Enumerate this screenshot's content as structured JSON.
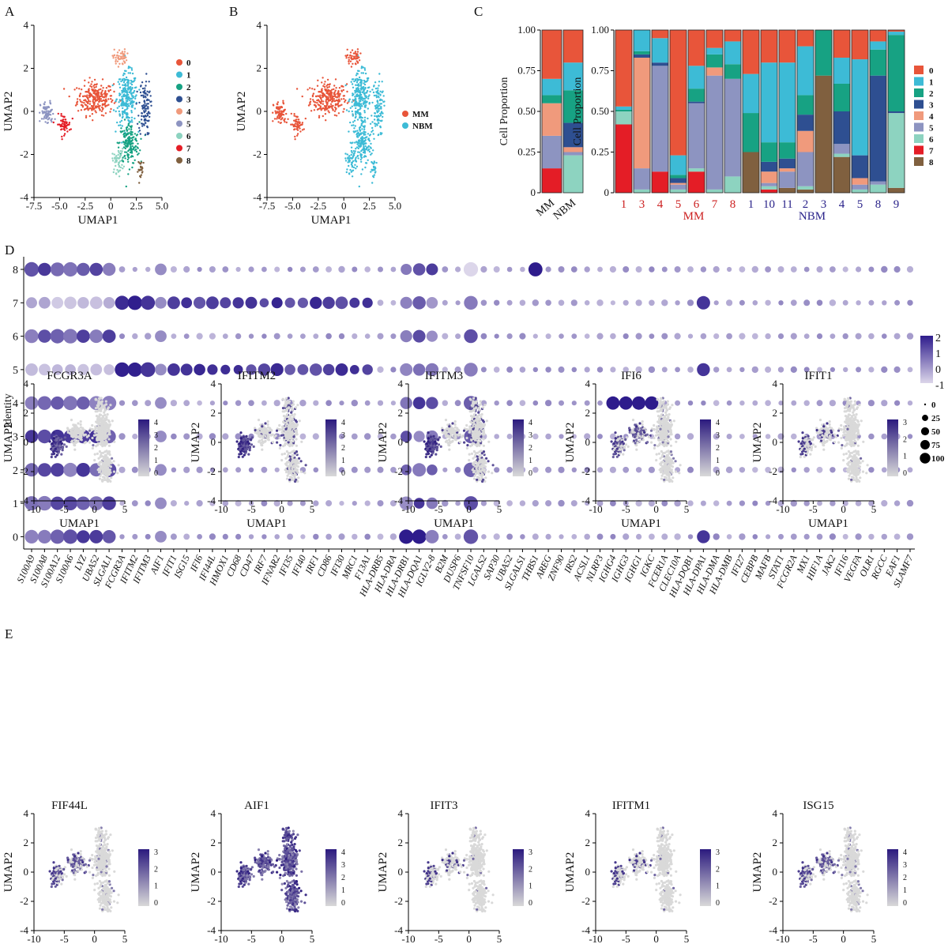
{
  "colors": {
    "clusters": [
      "#e8553a",
      "#3dbbd6",
      "#17a283",
      "#2e4f91",
      "#f09a7c",
      "#8d94c1",
      "#8dd3c0",
      "#e41d26",
      "#80603f"
    ],
    "mm": "#e8553a",
    "nbm": "#3dbbd6",
    "expr_low": "#d9d9d9",
    "expr_high": "#2b1a7e",
    "dot_low": "#dcd6ea",
    "dot_high": "#2e1c8c",
    "label_mm": "#cc1f1f",
    "label_nbm": "#2a238a"
  },
  "panel_labels": [
    "A",
    "B",
    "C",
    "D",
    "E"
  ],
  "chart_data": [
    {
      "type": "scatter",
      "panel": "A",
      "xlabel": "UMAP1",
      "ylabel": "UMAP2",
      "xlim": [
        -7.5,
        5.0
      ],
      "ylim": [
        -4,
        4
      ],
      "xticks": [
        "-7.5",
        "-5.0",
        "-2.5",
        "0",
        "2.5",
        "5.0"
      ],
      "yticks": [
        "-4",
        "-2",
        "0",
        "2",
        "4"
      ],
      "legend": [
        "0",
        "1",
        "2",
        "3",
        "4",
        "5",
        "6",
        "7",
        "8"
      ],
      "cluster_centers": [
        {
          "cluster": "0",
          "x": -1.5,
          "y": 0.6,
          "sx": 1.6,
          "sy": 0.7
        },
        {
          "cluster": "1",
          "x": 1.6,
          "y": 0.6,
          "sx": 0.9,
          "sy": 1.1
        },
        {
          "cluster": "2",
          "x": 1.8,
          "y": -1.5,
          "sx": 0.9,
          "sy": 0.9
        },
        {
          "cluster": "3",
          "x": 3.3,
          "y": 0.2,
          "sx": 0.5,
          "sy": 1.2
        },
        {
          "cluster": "4",
          "x": 0.9,
          "y": 2.5,
          "sx": 0.6,
          "sy": 0.35
        },
        {
          "cluster": "5",
          "x": -6.2,
          "y": -0.1,
          "sx": 0.6,
          "sy": 0.5
        },
        {
          "cluster": "6",
          "x": 0.7,
          "y": -2.3,
          "sx": 0.5,
          "sy": 0.5
        },
        {
          "cluster": "7",
          "x": -4.6,
          "y": -0.6,
          "sx": 0.6,
          "sy": 0.4
        },
        {
          "cluster": "8",
          "x": 3.0,
          "y": -2.7,
          "sx": 0.3,
          "sy": 0.4
        }
      ]
    },
    {
      "type": "scatter",
      "panel": "B",
      "xlabel": "UMAP1",
      "ylabel": "UMAP2",
      "xlim": [
        -7.5,
        5.0
      ],
      "ylim": [
        -4,
        4
      ],
      "xticks": [
        "-7.5",
        "-5.0",
        "-2.5",
        "0",
        "2.5",
        "5.0"
      ],
      "yticks": [
        "-4",
        "-2",
        "0",
        "2",
        "4"
      ],
      "legend": [
        "MM",
        "NBM"
      ]
    },
    {
      "type": "bar",
      "panel": "C-left",
      "stacked": true,
      "ylabel": "Cell Proportion",
      "ylim": [
        0,
        1
      ],
      "yticks": [
        "0",
        "0.25",
        "0.50",
        "0.75",
        "1.00"
      ],
      "categories": [
        "MM",
        "NBM"
      ],
      "series_order": [
        "7",
        "6",
        "5",
        "4",
        "3",
        "2",
        "1",
        "0"
      ],
      "stacks": [
        {
          "7": 0.15,
          "6": 0.0,
          "5": 0.2,
          "4": 0.2,
          "3": 0.0,
          "2": 0.05,
          "1": 0.1,
          "0": 0.3
        },
        {
          "7": 0.0,
          "6": 0.23,
          "5": 0.02,
          "4": 0.03,
          "3": 0.15,
          "2": 0.2,
          "1": 0.17,
          "0": 0.2
        }
      ]
    },
    {
      "type": "bar",
      "panel": "C-right",
      "stacked": true,
      "ylabel": "Cell Proportion",
      "ylim": [
        0,
        1
      ],
      "yticks": [
        "0",
        "0.25",
        "0.50",
        "0.75",
        "1.00"
      ],
      "categories": [
        "1",
        "3",
        "4",
        "5",
        "6",
        "7",
        "8",
        "1",
        "10",
        "11",
        "2",
        "3",
        "4",
        "5",
        "8",
        "9"
      ],
      "category_groups": [
        "MM",
        "MM",
        "MM",
        "MM",
        "MM",
        "MM",
        "MM",
        "NBM",
        "NBM",
        "NBM",
        "NBM",
        "NBM",
        "NBM",
        "NBM",
        "NBM",
        "NBM"
      ],
      "group_labels": [
        "MM",
        "NBM"
      ],
      "legend": [
        "0",
        "1",
        "2",
        "3",
        "4",
        "5",
        "6",
        "7",
        "8"
      ],
      "series_order": [
        "7",
        "8",
        "6",
        "5",
        "4",
        "3",
        "2",
        "1",
        "0"
      ],
      "stacks": [
        {
          "7": 0.42,
          "8": 0,
          "6": 0.08,
          "5": 0,
          "4": 0,
          "3": 0,
          "2": 0.01,
          "1": 0.02,
          "0": 0.47
        },
        {
          "7": 0,
          "8": 0,
          "6": 0.02,
          "5": 0.13,
          "4": 0.68,
          "3": 0.02,
          "2": 0.02,
          "1": 0.13,
          "0": 0
        },
        {
          "7": 0.13,
          "8": 0,
          "6": 0,
          "5": 0.65,
          "4": 0,
          "3": 0.02,
          "2": 0,
          "1": 0.15,
          "0": 0.05
        },
        {
          "7": 0,
          "8": 0,
          "6": 0.02,
          "5": 0.03,
          "4": 0.01,
          "3": 0.03,
          "2": 0.02,
          "1": 0.12,
          "0": 0.77
        },
        {
          "7": 0.13,
          "8": 0,
          "6": 0.02,
          "5": 0.4,
          "4": 0,
          "3": 0.01,
          "2": 0.08,
          "1": 0.14,
          "0": 0.22
        },
        {
          "7": 0,
          "8": 0,
          "6": 0.02,
          "5": 0.7,
          "4": 0.05,
          "3": 0,
          "2": 0.08,
          "1": 0.04,
          "0": 0.11
        },
        {
          "7": 0,
          "8": 0,
          "6": 0.1,
          "5": 0.6,
          "4": 0,
          "3": 0,
          "2": 0.09,
          "1": 0.14,
          "0": 0.07
        },
        {
          "7": 0,
          "8": 0.25,
          "6": 0,
          "5": 0,
          "4": 0,
          "3": 0,
          "2": 0.24,
          "1": 0.24,
          "0": 0.27
        },
        {
          "7": 0.02,
          "8": 0,
          "6": 0.02,
          "5": 0.02,
          "4": 0.07,
          "3": 0.06,
          "2": 0.12,
          "1": 0.49,
          "0": 0.2
        },
        {
          "7": 0,
          "8": 0.03,
          "6": 0,
          "5": 0.1,
          "4": 0.02,
          "3": 0.06,
          "2": 0.1,
          "1": 0.49,
          "0": 0.2
        },
        {
          "7": 0,
          "8": 0.02,
          "6": 0.02,
          "5": 0.21,
          "4": 0.13,
          "3": 0.1,
          "2": 0.12,
          "1": 0.3,
          "0": 0.1
        },
        {
          "7": 0,
          "8": 0.72,
          "6": 0,
          "5": 0,
          "4": 0,
          "3": 0,
          "2": 0.28,
          "1": 0,
          "0": 0
        },
        {
          "7": 0,
          "8": 0.22,
          "6": 0.02,
          "5": 0.06,
          "4": 0,
          "3": 0.2,
          "2": 0.17,
          "1": 0.16,
          "0": 0.17
        },
        {
          "7": 0,
          "8": 0,
          "6": 0.02,
          "5": 0.03,
          "4": 0.04,
          "3": 0.14,
          "2": 0,
          "1": 0.59,
          "0": 0.18
        },
        {
          "7": 0,
          "8": 0,
          "6": 0.05,
          "5": 0.02,
          "4": 0,
          "3": 0.65,
          "2": 0.16,
          "1": 0.05,
          "0": 0.07
        },
        {
          "7": 0,
          "8": 0.03,
          "6": 0.46,
          "5": 0,
          "4": 0,
          "3": 0.01,
          "2": 0.47,
          "1": 0.02,
          "0": 0.01
        }
      ]
    },
    {
      "type": "scatter",
      "subtype": "dot_plot",
      "panel": "D",
      "ylabel": "Identity",
      "identities": [
        "8",
        "7",
        "6",
        "5",
        "4",
        "3",
        "2",
        "1",
        "0"
      ],
      "genes": [
        "S100A9",
        "S100A8",
        "S100A12",
        "S100A6",
        "LYZ",
        "UBA52",
        "SLGAL1",
        "FCGR3A",
        "IFITM2",
        "IFITM3",
        "AIF1",
        "IFIT1",
        "ISG15",
        "IFI6",
        "IFI44L",
        "HMOX1",
        "CD68",
        "CD47",
        "IRF7",
        "IFNAR2",
        "IFI35",
        "IFI40",
        "IRF1",
        "CD86",
        "IFI30",
        "MRC1",
        "F13A1",
        "HLA-DRB5",
        "HLA-DRA",
        "HLA-DRB1",
        "HLA-DQA1",
        "IGLV2-8",
        "B2M",
        "DUSP6",
        "TNFSF10",
        "LGALS2",
        "SAP30",
        "UBA52",
        "SLGALS1",
        "THBS1",
        "AREG",
        "ZNF90",
        "IRS2",
        "ACSL1",
        "NLRP3",
        "IGHG4",
        "IGHG3",
        "IGHG1",
        "IGKC",
        "FCER1A",
        "CLEC10A",
        "HLA-DQB1",
        "HLA-DPA1",
        "HLA-DMA",
        "HLA-DMB",
        "IFI27",
        "CEBPB",
        "MAFB",
        "STAT1",
        "FCGR2A",
        "MX1",
        "HIF1A",
        "JAK2",
        "IFI16",
        "VEGFA",
        "OLR1",
        "RGCC",
        "EAF1",
        "SLAMF7"
      ],
      "color_legend": {
        "title": "",
        "ticks": [
          "2",
          "1",
          "0",
          "-1"
        ],
        "range": [
          -1,
          2
        ]
      },
      "size_legend": {
        "ticks": [
          "0",
          "25",
          "50",
          "75",
          "100"
        ]
      }
    },
    {
      "type": "scatter",
      "subtype": "feature_plot",
      "panel": "E",
      "xlabel": "UMAP1",
      "ylabel": "UMAP2",
      "xlim": [
        -10,
        5
      ],
      "ylim": [
        -4,
        4
      ],
      "xticks": [
        "-10",
        "-5",
        "0",
        "5"
      ],
      "yticks": [
        "-4",
        "-2",
        "0",
        "2",
        "4"
      ],
      "plots": [
        {
          "gene": "FCGR3A",
          "max": 4,
          "ticks": [
            "4",
            "3",
            "2",
            "1",
            "0"
          ],
          "pattern": "left"
        },
        {
          "gene": "IFITM2",
          "max": 4,
          "ticks": [
            "4",
            "3",
            "2",
            "1",
            "0"
          ],
          "pattern": "left-strong-scatter"
        },
        {
          "gene": "IFITM3",
          "max": 4,
          "ticks": [
            "4",
            "3",
            "2",
            "1",
            "0"
          ],
          "pattern": "left-strong-scatter"
        },
        {
          "gene": "IFI6",
          "max": 4,
          "ticks": [
            "4",
            "3",
            "2",
            "1",
            "0"
          ],
          "pattern": "left-mid"
        },
        {
          "gene": "IFIT1",
          "max": 3,
          "ticks": [
            "3",
            "2",
            "1",
            "0"
          ],
          "pattern": "sparse"
        },
        {
          "gene": "FIF44L",
          "max": 3,
          "ticks": [
            "3",
            "2",
            "1",
            "0"
          ],
          "pattern": "left-mid"
        },
        {
          "gene": "AIF1",
          "max": 4,
          "ticks": [
            "4",
            "3",
            "2",
            "1",
            "0"
          ],
          "pattern": "all"
        },
        {
          "gene": "IFIT3",
          "max": 3,
          "ticks": [
            "3",
            "2",
            "1",
            "0"
          ],
          "pattern": "sparse"
        },
        {
          "gene": "IFITM1",
          "max": 3,
          "ticks": [
            "3",
            "2",
            "1",
            "0"
          ],
          "pattern": "sparse"
        },
        {
          "gene": "ISG15",
          "max": 4,
          "ticks": [
            "4",
            "3",
            "2",
            "1",
            "0"
          ],
          "pattern": "left-mid"
        }
      ]
    }
  ]
}
